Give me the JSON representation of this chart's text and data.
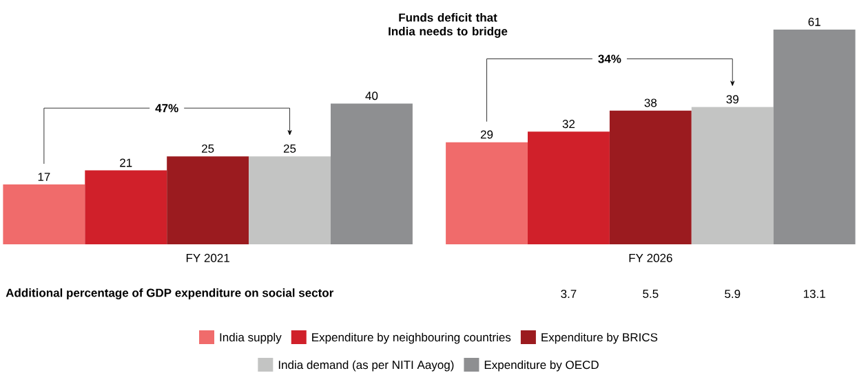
{
  "chart_data": {
    "type": "bar",
    "title": "Funds deficit that India needs to bridge",
    "categories": [
      "FY 2021",
      "FY 2026"
    ],
    "series": [
      {
        "name": "India supply",
        "color": "#f06b6b",
        "values": [
          17,
          29
        ]
      },
      {
        "name": "Expenditure by neighbouring countries",
        "color": "#d0202a",
        "values": [
          21,
          32
        ]
      },
      {
        "name": "Expenditure by BRICS",
        "color": "#9b1b1f",
        "values": [
          25,
          38
        ]
      },
      {
        "name": "India demand (as per NITI Aayog)",
        "color": "#c3c4c3",
        "values": [
          25,
          39
        ]
      },
      {
        "name": "Expenditure by OECD",
        "color": "#8e8f91",
        "values": [
          40,
          61
        ]
      }
    ],
    "annotations": [
      "47%",
      "34%",
      "Additional percentage of GDP expenditure on social sector",
      "3.7",
      "5.5",
      "5.9",
      "13.1"
    ],
    "data_labels": true,
    "legend": "bottom"
  }
}
